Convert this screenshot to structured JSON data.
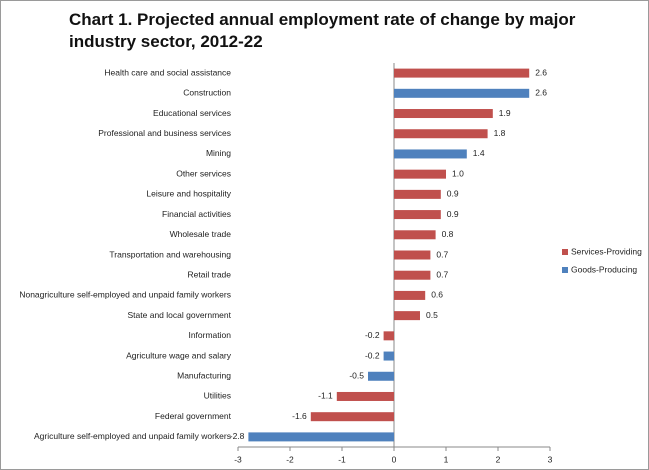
{
  "chart_data": {
    "type": "hbar",
    "title": "Chart 1. Projected annual employment rate of change by major industry sector, 2012-22",
    "categories": [
      "Health care and social assistance",
      "Construction",
      "Educational services",
      "Professional and business services",
      "Mining",
      "Other services",
      "Leisure and hospitality",
      "Financial activities",
      "Wholesale trade",
      "Transportation and warehousing",
      "Retail trade",
      "Nonagriculture self-employed and unpaid family workers",
      "State and local government",
      "Information",
      "Agriculture wage and salary",
      "Manufacturing",
      "Utilities",
      "Federal government",
      "Agriculture self-employed and unpaid family workers"
    ],
    "series": [
      {
        "name": "Services-Providing",
        "color": "#c0504d",
        "values": [
          2.6,
          null,
          1.9,
          1.8,
          null,
          1.0,
          0.9,
          0.9,
          0.8,
          0.7,
          0.7,
          0.6,
          0.5,
          -0.2,
          null,
          null,
          -1.1,
          -1.6,
          null
        ],
        "value_labels": [
          "2.6",
          null,
          "1.9",
          "1.8",
          null,
          "1.0",
          "0.9",
          "0.9",
          "0.8",
          "0.7",
          "0.7",
          "0.6",
          "0.5",
          "-0.2",
          null,
          null,
          "-1.1",
          "-1.6",
          null
        ]
      },
      {
        "name": "Goods-Producing",
        "color": "#4f81bd",
        "values": [
          null,
          2.6,
          null,
          null,
          1.4,
          null,
          null,
          null,
          null,
          null,
          null,
          null,
          null,
          null,
          -0.2,
          -0.5,
          null,
          null,
          -2.8
        ],
        "value_labels": [
          null,
          "2.6",
          null,
          null,
          "1.4",
          null,
          null,
          null,
          null,
          null,
          null,
          null,
          null,
          null,
          "-0.2",
          "-0.5",
          null,
          null,
          "-2.8"
        ]
      }
    ],
    "xlim": [
      -3,
      3
    ],
    "xticks": [
      -3,
      -2,
      -1,
      0,
      1,
      2,
      3
    ],
    "legend": "right"
  }
}
